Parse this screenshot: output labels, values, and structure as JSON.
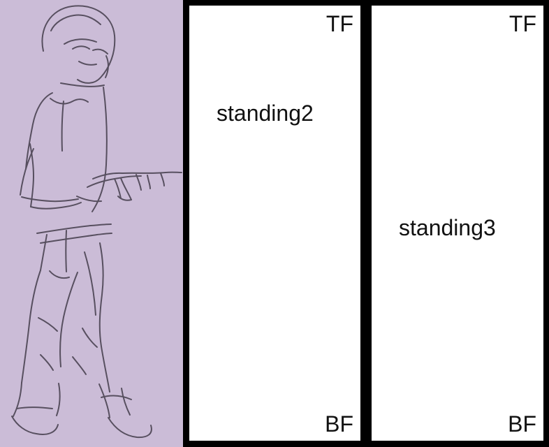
{
  "canvas": {
    "background_color": "#000000",
    "sketch_background_color": "#cbbcd7",
    "frame_background_color": "#ffffff"
  },
  "sketch": {
    "description_icon": "pencil-drawn-character-icon",
    "line_color": "#4b4453"
  },
  "frames": [
    {
      "top_label": "TF",
      "bottom_label": "BF",
      "pose_label": "standing2"
    },
    {
      "top_label": "TF",
      "bottom_label": "BF",
      "pose_label": "standing3"
    }
  ]
}
